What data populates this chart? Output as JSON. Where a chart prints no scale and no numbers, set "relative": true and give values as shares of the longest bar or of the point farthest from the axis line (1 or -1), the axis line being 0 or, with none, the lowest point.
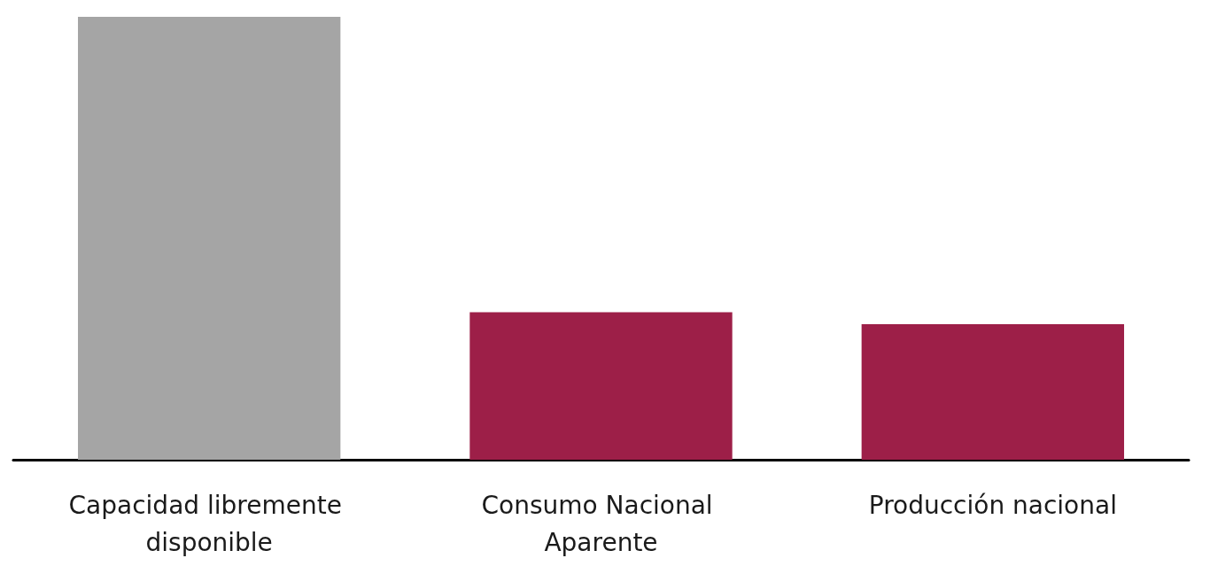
{
  "chart_data": {
    "type": "bar",
    "categories": [
      "Capacidad libremente disponible",
      "Consumo Nacional Aparente",
      "Producción nacional"
    ],
    "values": [
      1,
      0.333,
      0.306
    ],
    "colors": [
      "#a5a5a5",
      "#9d1f48",
      "#9d1f48"
    ],
    "relative": true
  }
}
